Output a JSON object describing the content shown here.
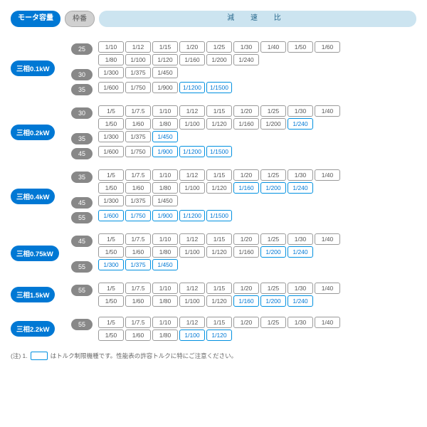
{
  "header": {
    "motor_label": "モータ容量",
    "frame_label": "枠番",
    "ratio_label": "減 速 比"
  },
  "colors": {
    "blue": "#0078d4",
    "lightblue": "#cce4f0",
    "gray": "#888",
    "border": "#999",
    "highlight": "#0090e0"
  },
  "blocks": [
    {
      "motor": "三相0.1kW",
      "frames": [
        {
          "num": "25",
          "rows": [
            [
              {
                "v": "1/10"
              },
              {
                "v": "1/12"
              },
              {
                "v": "1/15"
              },
              {
                "v": "1/20"
              },
              {
                "v": "1/25"
              },
              {
                "v": "1/30"
              },
              {
                "v": "1/40"
              },
              {
                "v": "1/50"
              },
              {
                "v": "1/60"
              }
            ],
            [
              {
                "v": "1/80"
              },
              {
                "v": "1/100"
              },
              {
                "v": "1/120"
              },
              {
                "v": "1/160"
              },
              {
                "v": "1/200"
              },
              {
                "v": "1/240"
              }
            ]
          ]
        },
        {
          "num": "30",
          "rows": [
            [
              {
                "v": "1/300"
              },
              {
                "v": "1/375"
              },
              {
                "v": "1/450"
              }
            ]
          ]
        },
        {
          "num": "35",
          "rows": [
            [
              {
                "v": "1/600"
              },
              {
                "v": "1/750"
              },
              {
                "v": "1/900"
              },
              {
                "v": "1/1200",
                "h": 1
              },
              {
                "v": "1/1500",
                "h": 1
              }
            ]
          ]
        }
      ]
    },
    {
      "motor": "三相0.2kW",
      "frames": [
        {
          "num": "30",
          "rows": [
            [
              {
                "v": "1/5"
              },
              {
                "v": "1/7.5"
              },
              {
                "v": "1/10"
              },
              {
                "v": "1/12"
              },
              {
                "v": "1/15"
              },
              {
                "v": "1/20"
              },
              {
                "v": "1/25"
              },
              {
                "v": "1/30"
              },
              {
                "v": "1/40"
              }
            ],
            [
              {
                "v": "1/50"
              },
              {
                "v": "1/60"
              },
              {
                "v": "1/80"
              },
              {
                "v": "1/100"
              },
              {
                "v": "1/120"
              },
              {
                "v": "1/160"
              },
              {
                "v": "1/200"
              },
              {
                "v": "1/240",
                "h": 1
              }
            ]
          ]
        },
        {
          "num": "35",
          "rows": [
            [
              {
                "v": "1/300"
              },
              {
                "v": "1/375"
              },
              {
                "v": "1/450",
                "h": 1
              }
            ]
          ]
        },
        {
          "num": "45",
          "rows": [
            [
              {
                "v": "1/600"
              },
              {
                "v": "1/750"
              },
              {
                "v": "1/900",
                "h": 1
              },
              {
                "v": "1/1200",
                "h": 1
              },
              {
                "v": "1/1500",
                "h": 1
              }
            ]
          ]
        }
      ]
    },
    {
      "motor": "三相0.4kW",
      "frames": [
        {
          "num": "35",
          "rows": [
            [
              {
                "v": "1/5"
              },
              {
                "v": "1/7.5"
              },
              {
                "v": "1/10"
              },
              {
                "v": "1/12"
              },
              {
                "v": "1/15"
              },
              {
                "v": "1/20"
              },
              {
                "v": "1/25"
              },
              {
                "v": "1/30"
              },
              {
                "v": "1/40"
              }
            ],
            [
              {
                "v": "1/50"
              },
              {
                "v": "1/60"
              },
              {
                "v": "1/80"
              },
              {
                "v": "1/100"
              },
              {
                "v": "1/120"
              },
              {
                "v": "1/160",
                "h": 1
              },
              {
                "v": "1/200",
                "h": 1
              },
              {
                "v": "1/240",
                "h": 1
              }
            ]
          ]
        },
        {
          "num": "45",
          "rows": [
            [
              {
                "v": "1/300"
              },
              {
                "v": "1/375"
              },
              {
                "v": "1/450"
              }
            ]
          ]
        },
        {
          "num": "55",
          "rows": [
            [
              {
                "v": "1/600",
                "h": 1
              },
              {
                "v": "1/750",
                "h": 1
              },
              {
                "v": "1/900",
                "h": 1
              },
              {
                "v": "1/1200",
                "h": 1
              },
              {
                "v": "1/1500",
                "h": 1
              }
            ]
          ]
        }
      ]
    },
    {
      "motor": "三相0.75kW",
      "frames": [
        {
          "num": "45",
          "rows": [
            [
              {
                "v": "1/5"
              },
              {
                "v": "1/7.5"
              },
              {
                "v": "1/10"
              },
              {
                "v": "1/12"
              },
              {
                "v": "1/15"
              },
              {
                "v": "1/20"
              },
              {
                "v": "1/25"
              },
              {
                "v": "1/30"
              },
              {
                "v": "1/40"
              }
            ],
            [
              {
                "v": "1/50"
              },
              {
                "v": "1/60"
              },
              {
                "v": "1/80"
              },
              {
                "v": "1/100"
              },
              {
                "v": "1/120"
              },
              {
                "v": "1/160"
              },
              {
                "v": "1/200",
                "h": 1
              },
              {
                "v": "1/240",
                "h": 1
              }
            ]
          ]
        },
        {
          "num": "55",
          "rows": [
            [
              {
                "v": "1/300",
                "h": 1
              },
              {
                "v": "1/375",
                "h": 1
              },
              {
                "v": "1/450",
                "h": 1
              }
            ]
          ]
        }
      ]
    },
    {
      "motor": "三相1.5kW",
      "frames": [
        {
          "num": "55",
          "rows": [
            [
              {
                "v": "1/5"
              },
              {
                "v": "1/7.5"
              },
              {
                "v": "1/10"
              },
              {
                "v": "1/12"
              },
              {
                "v": "1/15"
              },
              {
                "v": "1/20"
              },
              {
                "v": "1/25"
              },
              {
                "v": "1/30"
              },
              {
                "v": "1/40"
              }
            ],
            [
              {
                "v": "1/50"
              },
              {
                "v": "1/60"
              },
              {
                "v": "1/80"
              },
              {
                "v": "1/100"
              },
              {
                "v": "1/120"
              },
              {
                "v": "1/160",
                "h": 1
              },
              {
                "v": "1/200",
                "h": 1
              },
              {
                "v": "1/240",
                "h": 1
              }
            ]
          ]
        }
      ]
    },
    {
      "motor": "三相2.2kW",
      "frames": [
        {
          "num": "55",
          "rows": [
            [
              {
                "v": "1/5"
              },
              {
                "v": "1/7.5"
              },
              {
                "v": "1/10"
              },
              {
                "v": "1/12"
              },
              {
                "v": "1/15"
              },
              {
                "v": "1/20"
              },
              {
                "v": "1/25"
              },
              {
                "v": "1/30"
              },
              {
                "v": "1/40"
              }
            ],
            [
              {
                "v": "1/50"
              },
              {
                "v": "1/60"
              },
              {
                "v": "1/80"
              },
              {
                "v": "1/100",
                "h": 1
              },
              {
                "v": "1/120",
                "h": 1
              }
            ]
          ]
        }
      ]
    }
  ],
  "note_prefix": "(注) 1.",
  "note_text": "はトルク制限機種です。性能表の許容トルクに特にご注意ください。"
}
